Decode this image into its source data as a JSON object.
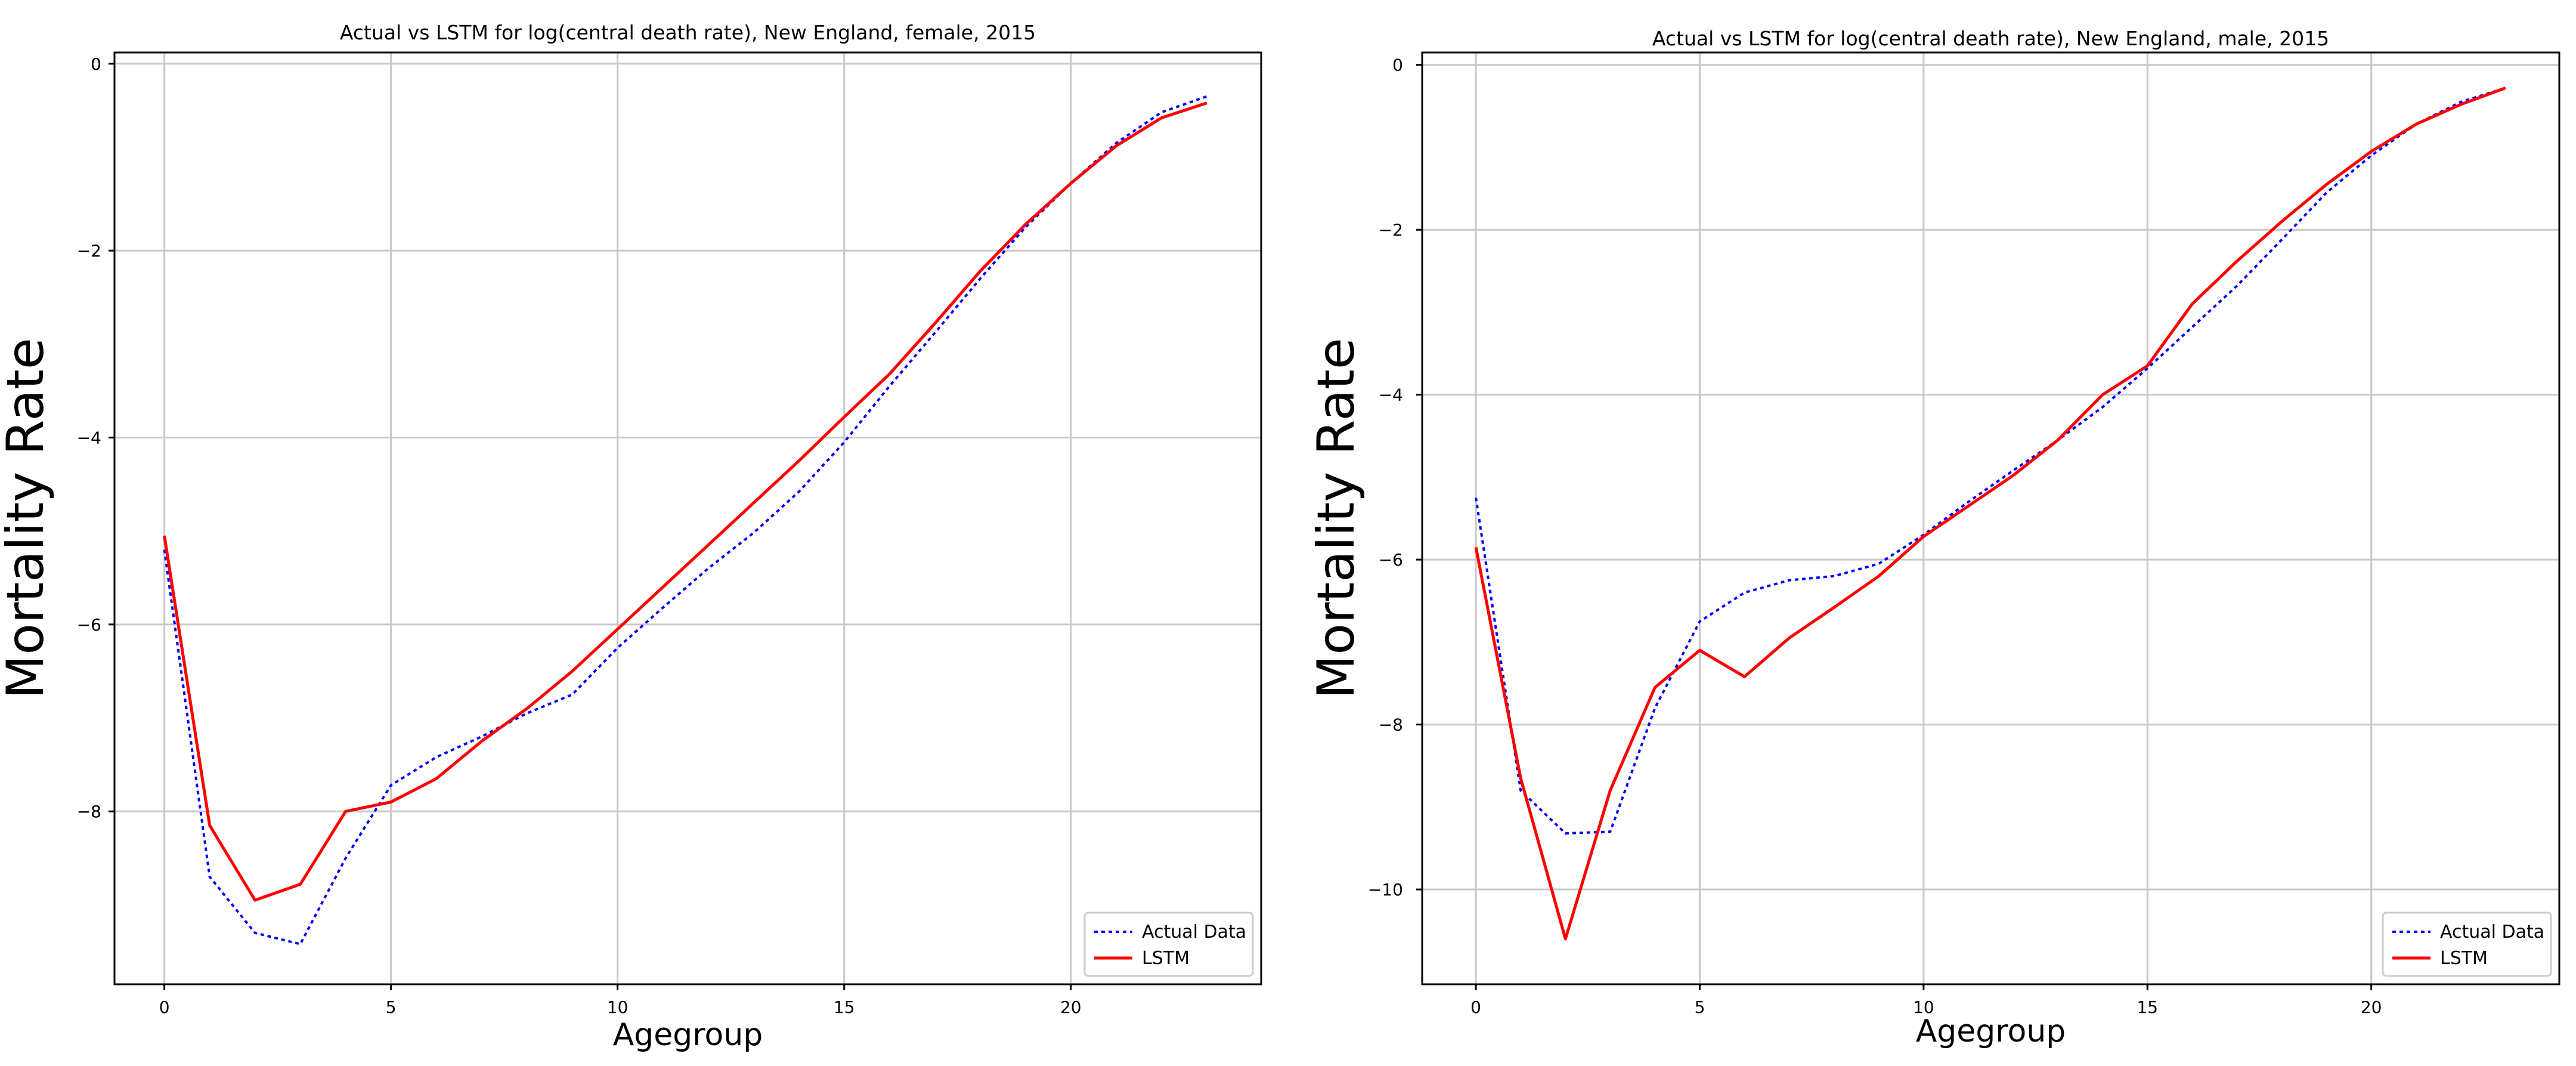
{
  "chart_data": [
    {
      "type": "line",
      "title": "Actual vs LSTM for log(central death rate), New England, female, 2015",
      "xlabel": "Agegroup",
      "ylabel": "Mortality Rate",
      "xlim": [
        -1.1,
        24.2
      ],
      "ylim": [
        -9.85,
        0.12
      ],
      "xticks": [
        0,
        5,
        10,
        15,
        20
      ],
      "yticks": [
        0,
        -2,
        -4,
        -6,
        -8
      ],
      "grid": true,
      "legend_position": "lower-right",
      "x": [
        0,
        1,
        2,
        3,
        4,
        5,
        6,
        7,
        8,
        9,
        10,
        11,
        12,
        13,
        14,
        15,
        16,
        17,
        18,
        19,
        20,
        21,
        22,
        23
      ],
      "series": [
        {
          "name": "Actual Data",
          "color": "#0000ff",
          "style": "dotted",
          "values": [
            -5.2,
            -8.7,
            -9.3,
            -9.42,
            -8.5,
            -7.72,
            -7.42,
            -7.2,
            -6.95,
            -6.75,
            -6.25,
            -5.82,
            -5.4,
            -5.02,
            -4.58,
            -4.05,
            -3.45,
            -2.88,
            -2.3,
            -1.75,
            -1.28,
            -0.85,
            -0.52,
            -0.35
          ]
        },
        {
          "name": "LSTM",
          "color": "#ff0000",
          "style": "solid",
          "values": [
            -5.05,
            -8.15,
            -8.95,
            -8.78,
            -8.0,
            -7.9,
            -7.65,
            -7.25,
            -6.9,
            -6.5,
            -6.05,
            -5.6,
            -5.15,
            -4.7,
            -4.25,
            -3.78,
            -3.32,
            -2.78,
            -2.22,
            -1.72,
            -1.28,
            -0.88,
            -0.58,
            -0.42
          ]
        }
      ]
    },
    {
      "type": "line",
      "title": "Actual vs LSTM for log(central death rate), New England, male, 2015",
      "xlabel": "Agegroup",
      "ylabel": "Mortality Rate",
      "xlim": [
        -1.2,
        24.2
      ],
      "ylim": [
        -11.15,
        0.15
      ],
      "xticks": [
        0,
        5,
        10,
        15,
        20
      ],
      "yticks": [
        0,
        -2,
        -4,
        -6,
        -8,
        -10
      ],
      "grid": true,
      "legend_position": "lower-right",
      "x": [
        0,
        1,
        2,
        3,
        4,
        5,
        6,
        7,
        8,
        9,
        10,
        11,
        12,
        13,
        14,
        15,
        16,
        17,
        18,
        19,
        20,
        21,
        22,
        23
      ],
      "series": [
        {
          "name": "Actual Data",
          "color": "#0000ff",
          "style": "dotted",
          "values": [
            -5.25,
            -8.8,
            -9.32,
            -9.3,
            -7.8,
            -6.75,
            -6.4,
            -6.25,
            -6.2,
            -6.05,
            -5.7,
            -5.3,
            -4.92,
            -4.55,
            -4.15,
            -3.68,
            -3.18,
            -2.68,
            -2.12,
            -1.55,
            -1.1,
            -0.72,
            -0.45,
            -0.28
          ]
        },
        {
          "name": "LSTM",
          "color": "#ff0000",
          "style": "solid",
          "values": [
            -5.85,
            -8.65,
            -10.6,
            -8.8,
            -7.55,
            -7.1,
            -7.42,
            -6.95,
            -6.58,
            -6.2,
            -5.72,
            -5.35,
            -4.98,
            -4.55,
            -4.0,
            -3.65,
            -2.9,
            -2.38,
            -1.9,
            -1.45,
            -1.05,
            -0.72,
            -0.48,
            -0.28
          ]
        }
      ]
    }
  ]
}
